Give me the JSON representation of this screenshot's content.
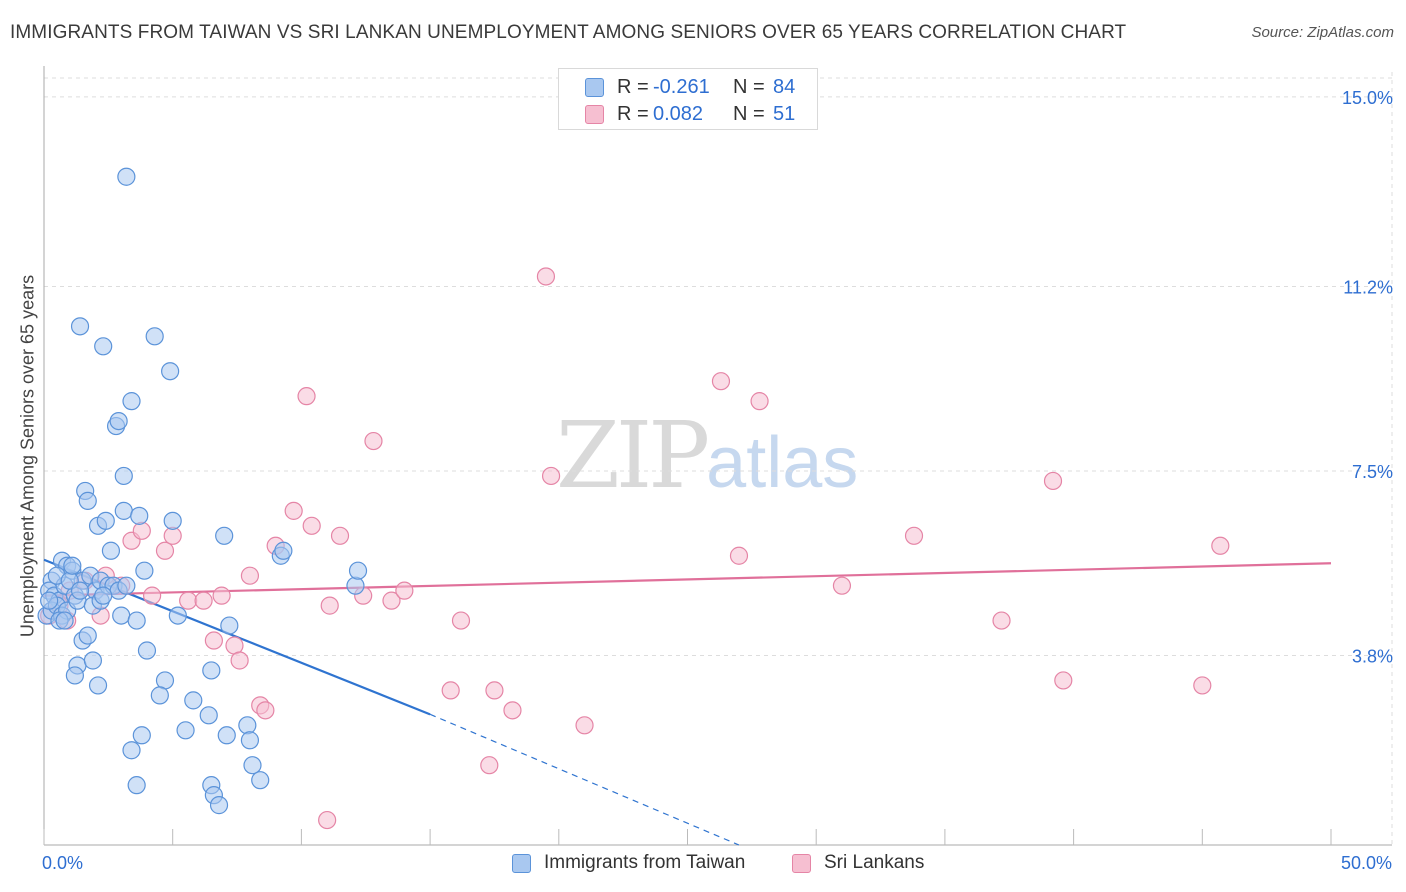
{
  "header": {
    "title": "IMMIGRANTS FROM TAIWAN VS SRI LANKAN UNEMPLOYMENT AMONG SENIORS OVER 65 YEARS CORRELATION CHART",
    "source": "Source: ZipAtlas.com"
  },
  "legend_top": {
    "rows": [
      {
        "r_label": "R =",
        "r_value": "-0.261",
        "n_label": "N =",
        "n_value": "84"
      },
      {
        "r_label": "R =",
        "r_value": "0.082",
        "n_label": "N =",
        "n_value": "51"
      }
    ]
  },
  "legend_bottom": {
    "items": [
      {
        "label": "Immigrants from Taiwan"
      },
      {
        "label": "Sri Lankans"
      }
    ]
  },
  "watermark": {
    "zip": "ZIP",
    "atlas": "atlas"
  },
  "colors": {
    "taiwan_fill": "#a9c8f0",
    "taiwan_stroke": "#5b93d9",
    "taiwan_line": "#2f74d0",
    "srilanka_fill": "#f6bfd1",
    "srilanka_stroke": "#e585a6",
    "srilanka_line": "#e0709a",
    "tick_label": "#2e6ed1",
    "grid": "#dddddd"
  },
  "chart_data": {
    "type": "scatter",
    "title": "IMMIGRANTS FROM TAIWAN VS SRI LANKAN UNEMPLOYMENT AMONG SENIORS OVER 65 YEARS CORRELATION CHART",
    "xlabel": "",
    "ylabel": "Unemployment Among Seniors over 65 years",
    "xlim": [
      0,
      50
    ],
    "ylim": [
      0,
      15.5
    ],
    "x_tick_labels": [
      {
        "value": 0,
        "label": "0.0%"
      },
      {
        "value": 50,
        "label": "50.0%"
      }
    ],
    "y_ticks": [
      {
        "value": 3.8,
        "label": "3.8%"
      },
      {
        "value": 7.5,
        "label": "7.5%"
      },
      {
        "value": 11.2,
        "label": "11.2%"
      },
      {
        "value": 15.0,
        "label": "15.0%"
      }
    ],
    "series": [
      {
        "name": "Immigrants from Taiwan",
        "R": -0.261,
        "N": 84,
        "trend": {
          "x0": 0,
          "y0": 5.72,
          "x1": 15,
          "y1": 2.62,
          "dash_to_x": 27,
          "dash_to_y": 0.0
        },
        "points": [
          [
            3.2,
            13.4
          ],
          [
            1.4,
            10.4
          ],
          [
            2.3,
            10.0
          ],
          [
            4.3,
            10.2
          ],
          [
            4.9,
            9.5
          ],
          [
            3.4,
            8.9
          ],
          [
            2.8,
            8.4
          ],
          [
            2.9,
            8.5
          ],
          [
            3.1,
            7.4
          ],
          [
            1.6,
            7.1
          ],
          [
            1.7,
            6.9
          ],
          [
            2.1,
            6.4
          ],
          [
            2.4,
            6.5
          ],
          [
            3.1,
            6.7
          ],
          [
            3.7,
            6.6
          ],
          [
            5.0,
            6.5
          ],
          [
            7.0,
            6.2
          ],
          [
            2.6,
            5.9
          ],
          [
            0.7,
            5.7
          ],
          [
            0.9,
            5.6
          ],
          [
            1.1,
            5.5
          ],
          [
            0.3,
            5.3
          ],
          [
            0.2,
            5.1
          ],
          [
            0.4,
            5.0
          ],
          [
            0.6,
            4.9
          ],
          [
            0.8,
            5.2
          ],
          [
            1.2,
            5.0
          ],
          [
            1.5,
            5.3
          ],
          [
            1.8,
            5.4
          ],
          [
            2.0,
            5.1
          ],
          [
            2.2,
            5.3
          ],
          [
            2.5,
            5.2
          ],
          [
            2.7,
            5.2
          ],
          [
            2.9,
            5.1
          ],
          [
            3.2,
            5.2
          ],
          [
            0.1,
            4.6
          ],
          [
            0.3,
            4.7
          ],
          [
            0.5,
            4.8
          ],
          [
            0.7,
            4.6
          ],
          [
            0.9,
            4.7
          ],
          [
            1.3,
            4.9
          ],
          [
            1.9,
            4.8
          ],
          [
            2.2,
            4.9
          ],
          [
            3.0,
            4.6
          ],
          [
            3.6,
            4.5
          ],
          [
            5.2,
            4.6
          ],
          [
            7.2,
            4.4
          ],
          [
            9.2,
            5.8
          ],
          [
            9.3,
            5.9
          ],
          [
            12.1,
            5.2
          ],
          [
            12.2,
            5.5
          ],
          [
            1.5,
            4.1
          ],
          [
            1.3,
            3.6
          ],
          [
            1.2,
            3.4
          ],
          [
            1.9,
            3.7
          ],
          [
            2.1,
            3.2
          ],
          [
            4.0,
            3.9
          ],
          [
            4.7,
            3.3
          ],
          [
            4.5,
            3.0
          ],
          [
            5.8,
            2.9
          ],
          [
            6.4,
            2.6
          ],
          [
            5.5,
            2.3
          ],
          [
            6.5,
            3.5
          ],
          [
            7.1,
            2.2
          ],
          [
            7.9,
            2.4
          ],
          [
            8.0,
            2.1
          ],
          [
            3.8,
            2.2
          ],
          [
            3.4,
            1.9
          ],
          [
            8.1,
            1.6
          ],
          [
            8.4,
            1.3
          ],
          [
            3.6,
            1.2
          ],
          [
            6.5,
            1.2
          ],
          [
            6.6,
            1.0
          ],
          [
            6.8,
            0.8
          ],
          [
            0.5,
            5.4
          ],
          [
            1.0,
            5.3
          ],
          [
            1.4,
            5.1
          ],
          [
            2.3,
            5.0
          ],
          [
            0.6,
            4.5
          ],
          [
            1.1,
            5.6
          ],
          [
            0.2,
            4.9
          ],
          [
            0.8,
            4.5
          ],
          [
            3.9,
            5.5
          ],
          [
            1.7,
            4.2
          ]
        ]
      },
      {
        "name": "Sri Lankans",
        "R": 0.082,
        "N": 51,
        "trend": {
          "x0": 0,
          "y0": 5.0,
          "x1": 50,
          "y1": 5.65
        },
        "points": [
          [
            0.2,
            4.6
          ],
          [
            0.6,
            4.8
          ],
          [
            1.0,
            5.1
          ],
          [
            0.9,
            4.5
          ],
          [
            1.6,
            5.3
          ],
          [
            2.2,
            4.6
          ],
          [
            2.4,
            5.4
          ],
          [
            3.0,
            5.2
          ],
          [
            3.4,
            6.1
          ],
          [
            3.8,
            6.3
          ],
          [
            4.2,
            5.0
          ],
          [
            4.7,
            5.9
          ],
          [
            5.0,
            6.2
          ],
          [
            5.6,
            4.9
          ],
          [
            6.2,
            4.9
          ],
          [
            6.6,
            4.1
          ],
          [
            6.9,
            5.0
          ],
          [
            7.4,
            4.0
          ],
          [
            7.6,
            3.7
          ],
          [
            8.0,
            5.4
          ],
          [
            8.4,
            2.8
          ],
          [
            8.6,
            2.7
          ],
          [
            9.0,
            6.0
          ],
          [
            9.7,
            6.7
          ],
          [
            10.4,
            6.4
          ],
          [
            11.1,
            4.8
          ],
          [
            11.5,
            6.2
          ],
          [
            12.4,
            5.0
          ],
          [
            13.5,
            4.9
          ],
          [
            14.0,
            5.1
          ],
          [
            10.2,
            9.0
          ],
          [
            12.8,
            8.1
          ],
          [
            15.8,
            3.1
          ],
          [
            16.2,
            4.5
          ],
          [
            17.3,
            1.6
          ],
          [
            17.5,
            3.1
          ],
          [
            18.2,
            2.7
          ],
          [
            19.5,
            11.4
          ],
          [
            19.7,
            7.4
          ],
          [
            21.0,
            2.4
          ],
          [
            26.3,
            9.3
          ],
          [
            27.0,
            5.8
          ],
          [
            27.8,
            8.9
          ],
          [
            31.0,
            5.2
          ],
          [
            33.8,
            6.2
          ],
          [
            37.2,
            4.5
          ],
          [
            39.2,
            7.3
          ],
          [
            39.6,
            3.3
          ],
          [
            45.0,
            3.2
          ],
          [
            45.7,
            6.0
          ],
          [
            11.0,
            0.5
          ]
        ]
      }
    ]
  }
}
